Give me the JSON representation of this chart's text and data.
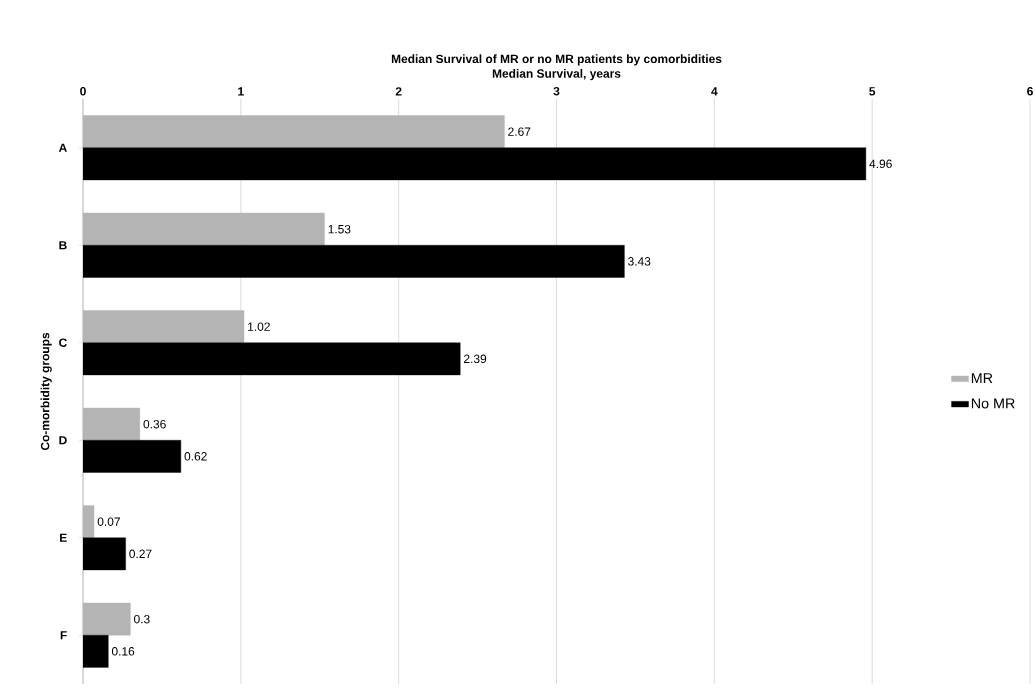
{
  "chart_data": {
    "type": "bar",
    "orientation": "horizontal",
    "title": "Median Survival of MR or no MR patients by comorbidities",
    "xlabel": "Median Survival, years",
    "ylabel": "Co-morbidity groups",
    "categories": [
      "A",
      "B",
      "C",
      "D",
      "E",
      "F"
    ],
    "series": [
      {
        "name": "MR",
        "color": "#b4b4b4",
        "values": [
          2.67,
          1.53,
          1.02,
          0.36,
          0.07,
          0.3
        ]
      },
      {
        "name": "No MR",
        "color": "#000000",
        "values": [
          4.96,
          3.43,
          2.39,
          0.62,
          0.27,
          0.16
        ]
      }
    ],
    "xlim": [
      0,
      6
    ],
    "xticks": [
      0,
      1,
      2,
      3,
      4,
      5,
      6
    ],
    "grid": "x",
    "legend": "right",
    "data_labels": true
  }
}
